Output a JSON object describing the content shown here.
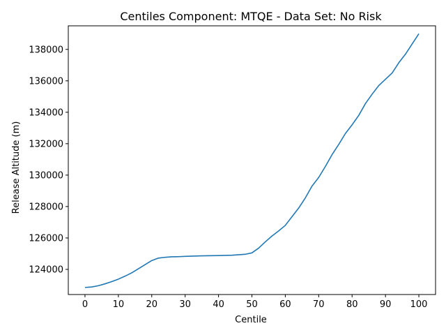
{
  "chart_data": {
    "type": "line",
    "title": "Centiles Component: MTQE - Data Set: No Risk",
    "xlabel": "Centile",
    "ylabel": "Release Altitude (m)",
    "xlim": [
      -5,
      105
    ],
    "ylim": [
      122400,
      139500
    ],
    "xticks": [
      0,
      10,
      20,
      30,
      40,
      50,
      60,
      70,
      80,
      90,
      100
    ],
    "yticks": [
      124000,
      126000,
      128000,
      130000,
      132000,
      134000,
      136000,
      138000
    ],
    "grid": false,
    "legend": "none",
    "line_color": "#1f77b4",
    "series": [
      {
        "x": [
          0,
          2,
          4,
          6,
          8,
          10,
          12,
          14,
          16,
          18,
          20,
          22,
          24,
          26,
          28,
          30,
          35,
          40,
          44,
          48,
          50,
          52,
          54,
          56,
          58,
          60,
          62,
          64,
          66,
          68,
          70,
          72,
          74,
          76,
          78,
          80,
          82,
          84,
          86,
          88,
          90,
          92,
          94,
          96,
          98,
          100
        ],
        "values": [
          122850,
          122880,
          122960,
          123080,
          123220,
          123380,
          123570,
          123780,
          124040,
          124300,
          124560,
          124720,
          124770,
          124800,
          124810,
          124830,
          124860,
          124880,
          124900,
          124960,
          125050,
          125350,
          125750,
          126120,
          126450,
          126800,
          127350,
          127900,
          128550,
          129300,
          129850,
          130550,
          131300,
          131950,
          132650,
          133200,
          133800,
          134550,
          135150,
          135700,
          136100,
          136500,
          137150,
          137700,
          138350,
          139000
        ]
      }
    ]
  }
}
